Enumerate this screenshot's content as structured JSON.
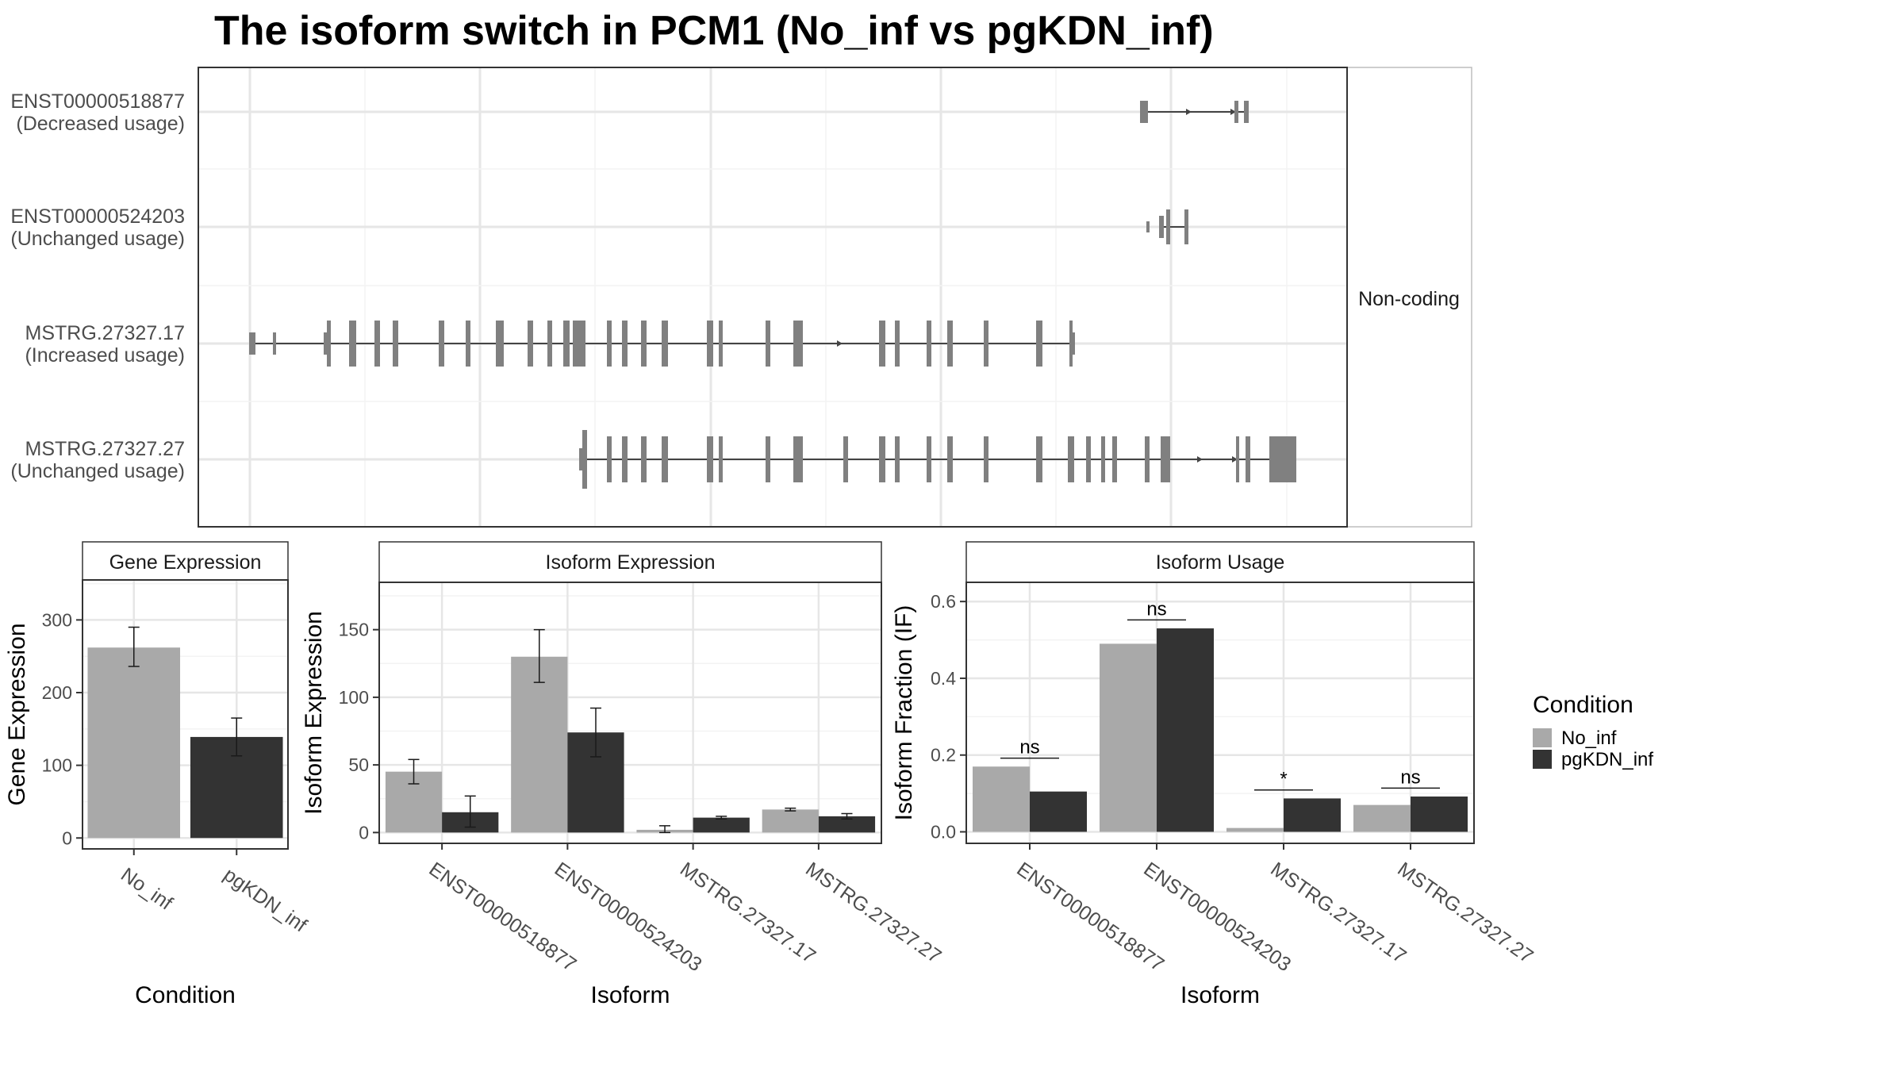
{
  "title": "The isoform switch in PCM1 (No_inf vs pgKDN_inf)",
  "colors": {
    "No_inf": "#a9a9a9",
    "pgKDN_inf": "#333333",
    "transcript": "#808080",
    "grid": "#ebebeb",
    "panel_border": "#333333"
  },
  "legend": {
    "title": "Condition",
    "items": [
      "No_inf",
      "pgKDN_inf"
    ],
    "position": "right"
  },
  "chart_data": [
    {
      "type": "gene-structure",
      "strip_label": "Non-coding",
      "grid": true,
      "transcripts": [
        {
          "name": "ENST00000518877",
          "usage": "(Decreased usage)"
        },
        {
          "name": "ENST00000524203",
          "usage": "(Unchanged usage)"
        },
        {
          "name": "MSTRG.27327.17",
          "usage": "(Increased usage)"
        },
        {
          "name": "MSTRG.27327.27",
          "usage": "(Unchanged usage)"
        }
      ]
    },
    {
      "type": "bar",
      "strip_title": "Gene Expression",
      "xlabel": "Condition",
      "ylabel": "Gene Expression",
      "categories": [
        "No_inf",
        "pgKDN_inf"
      ],
      "values": [
        262,
        139
      ],
      "errors": [
        [
          236,
          290
        ],
        [
          113,
          165
        ]
      ],
      "ylim": [
        -15,
        355
      ],
      "yticks": [
        0,
        100,
        200,
        300
      ],
      "grid": true
    },
    {
      "type": "bar",
      "strip_title": "Isoform Expression",
      "xlabel": "Isoform",
      "ylabel": "Isoform Expression",
      "categories": [
        "ENST00000518877",
        "ENST00000524203",
        "MSTRG.27327.17",
        "MSTRG.27327.27"
      ],
      "series": [
        {
          "name": "No_inf",
          "values": [
            45,
            130,
            2,
            17
          ],
          "errors": [
            [
              36,
              54
            ],
            [
              111,
              150
            ],
            [
              0,
              5
            ],
            [
              16,
              18
            ]
          ]
        },
        {
          "name": "pgKDN_inf",
          "values": [
            15,
            74,
            11,
            12
          ],
          "errors": [
            [
              4,
              27
            ],
            [
              56,
              92
            ],
            [
              10,
              12
            ],
            [
              10,
              14
            ]
          ]
        }
      ],
      "ylim": [
        -8,
        185
      ],
      "yticks": [
        0,
        50,
        100,
        150
      ],
      "grid": true
    },
    {
      "type": "bar",
      "strip_title": "Isoform Usage",
      "xlabel": "Isoform",
      "ylabel": "Isoform Fraction (IF)",
      "categories": [
        "ENST00000518877",
        "ENST00000524203",
        "MSTRG.27327.17",
        "MSTRG.27327.27"
      ],
      "series": [
        {
          "name": "No_inf",
          "values": [
            0.17,
            0.49,
            0.01,
            0.07
          ]
        },
        {
          "name": "pgKDN_inf",
          "values": [
            0.105,
            0.53,
            0.087,
            0.092
          ]
        }
      ],
      "significance": [
        "ns",
        "ns",
        "*",
        "ns"
      ],
      "ylim": [
        -0.03,
        0.65
      ],
      "yticks": [
        "0.0",
        "0.2",
        "0.4",
        "0.6"
      ],
      "grid": true
    }
  ]
}
